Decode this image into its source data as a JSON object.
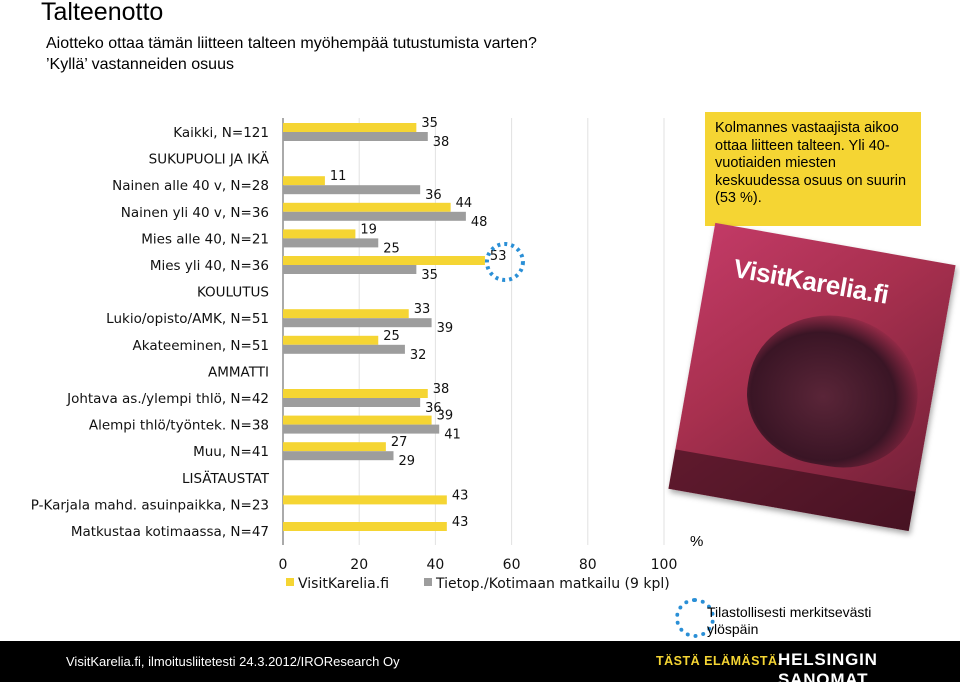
{
  "header": {
    "title": "Talteenotto",
    "question_line1": "Aiotteko ottaa tämän liitteen talteen myöhempää tutustumista varten?",
    "question_line2": "’Kyllä’ vastanneiden osuus"
  },
  "note": "Kolmannes vastaajista aikoo ottaa liitteen talteen. Yli 40-vuotiaiden miesten keskuudessa osuus on suurin (53 %).",
  "cover": {
    "brand": "VisitKarelia.fi"
  },
  "percent_sign": "%",
  "footnote": "Tilastollisesti merkitsevästi ylöspäin",
  "footer": {
    "source": "VisitKarelia.fi, ilmoitusliitetesti 24.3.2012/IROResearch Oy",
    "slogan": "TÄSTÄ ELÄMÄSTÄ.",
    "publisher": "HELSINGIN SANOMAT"
  },
  "colors": {
    "series1": "#f5d533",
    "series2": "#9d9d9d",
    "highlight": "#2a8fd6",
    "footer_bg": "#000000"
  },
  "chart_data": {
    "type": "bar",
    "orientation": "horizontal",
    "title": "",
    "xlabel": "%",
    "xlim": [
      0,
      100
    ],
    "xticks": [
      0,
      20,
      40,
      60,
      80,
      100
    ],
    "legend_position": "bottom",
    "series_names": [
      "VisitKarelia.fi",
      "Tietop./Kotimaan matkailu (9 kpl)"
    ],
    "rows": [
      {
        "label": "Kaikki, N=121",
        "values": [
          35,
          38
        ],
        "highlight": false
      },
      {
        "label": "SUKUPUOLI JA IKÄ",
        "values": null
      },
      {
        "label": "Nainen alle 40 v, N=28",
        "values": [
          11,
          36
        ],
        "highlight": false
      },
      {
        "label": "Nainen yli 40 v, N=36",
        "values": [
          44,
          48
        ],
        "highlight": false
      },
      {
        "label": "Mies alle 40, N=21",
        "values": [
          19,
          25
        ],
        "highlight": false
      },
      {
        "label": "Mies yli 40, N=36",
        "values": [
          53,
          35
        ],
        "highlight": true
      },
      {
        "label": "KOULUTUS",
        "values": null
      },
      {
        "label": "Lukio/opisto/AMK, N=51",
        "values": [
          33,
          39
        ],
        "highlight": false
      },
      {
        "label": "Akateeminen, N=51",
        "values": [
          25,
          32
        ],
        "highlight": false
      },
      {
        "label": "AMMATTI",
        "values": null
      },
      {
        "label": "Johtava as./ylempi thlö, N=42",
        "values": [
          38,
          36
        ],
        "highlight": false
      },
      {
        "label": "Alempi thlö/työntek. N=38",
        "values": [
          39,
          41
        ],
        "highlight": false
      },
      {
        "label": "Muu, N=41",
        "values": [
          27,
          29
        ],
        "highlight": false
      },
      {
        "label": "LISÄTAUSTAT",
        "values": null
      },
      {
        "label": "P-Karjala mahd. asuinpaikka, N=23",
        "values": [
          43,
          null
        ],
        "highlight": false
      },
      {
        "label": "Matkustaa  kotimaassa, N=47",
        "values": [
          43,
          null
        ],
        "highlight": false
      }
    ]
  }
}
